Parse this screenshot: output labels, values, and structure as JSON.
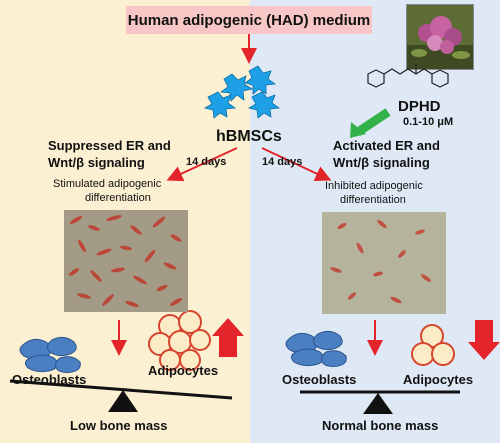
{
  "header": {
    "medium_label": "Human adipogenic (HAD) medium"
  },
  "cells": {
    "label": "hBMSCs"
  },
  "compound": {
    "name": "DPHD",
    "dose": "0.1-10 μM"
  },
  "left": {
    "signaling_line1": "Suppressed ER and",
    "signaling_line2": "Wnt/β signaling",
    "days": "14 days",
    "diff_line1": "Stimulated adipogenic",
    "diff_line2": "differentiation",
    "adipocytes": "Adipocytes",
    "osteoblasts": "Osteoblasts",
    "outcome": "Low bone mass"
  },
  "right": {
    "days": "14 days",
    "signaling_line1": "Activated ER and",
    "signaling_line2": "Wnt/β signaling",
    "diff_line1": "Inhibited adipogenic",
    "diff_line2": "differentiation",
    "osteoblasts": "Osteoblasts",
    "adipocytes": "Adipocytes",
    "outcome": "Normal bone mass"
  },
  "colors": {
    "left_bg": "#fbf0d2",
    "right_bg": "#dfe9f5",
    "header_bg": "#f9c6c6",
    "arrow_red": "#e3242b",
    "arrow_green": "#33b249",
    "stem_cell_blue": "#1ea0e6",
    "osteoblast_blue": "#4a7fc1"
  }
}
